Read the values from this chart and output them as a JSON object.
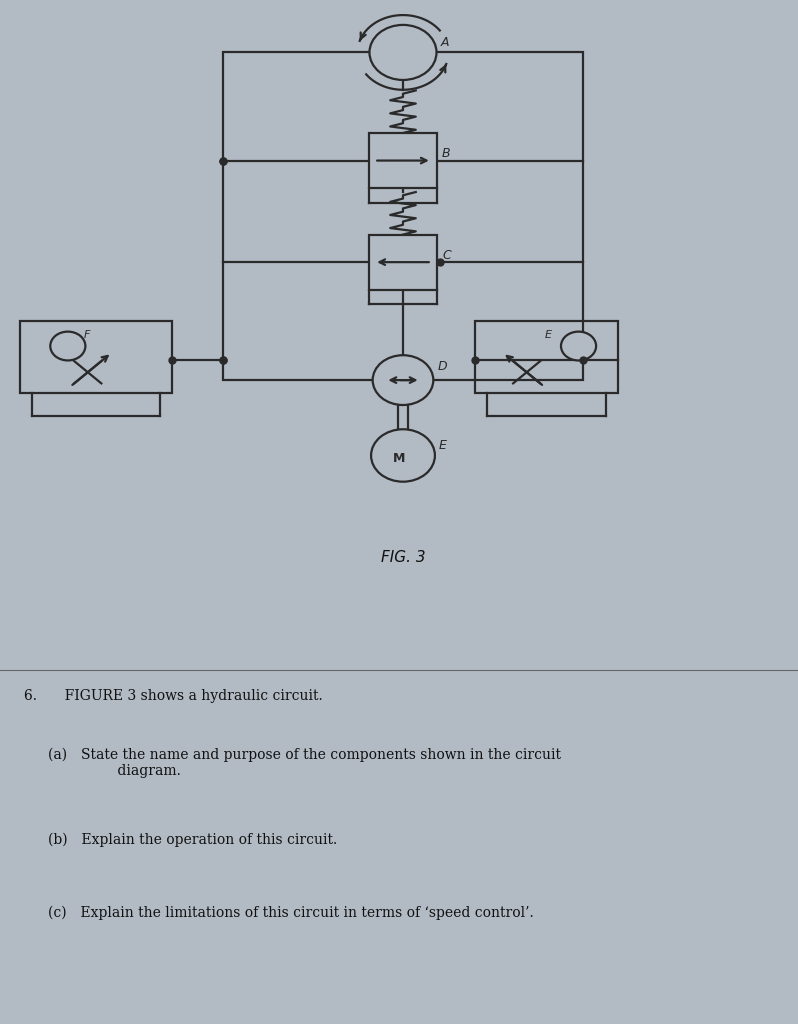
{
  "bg_color": "#b2bac4",
  "line_color": "#2a2a2a",
  "lw": 1.6,
  "fig_width": 7.98,
  "fig_height": 10.24,
  "title": "FIG. 3",
  "q6": "6.  FIGURE 3 shows a hydraulic circuit.",
  "qa": "(a) State the name and purpose of the components shown in the circuit\n     diagram.",
  "qb": "(b) Explain the operation of this circuit.",
  "qc": "(c) Explain the limitations of this circuit in terms of ‘speed control’."
}
